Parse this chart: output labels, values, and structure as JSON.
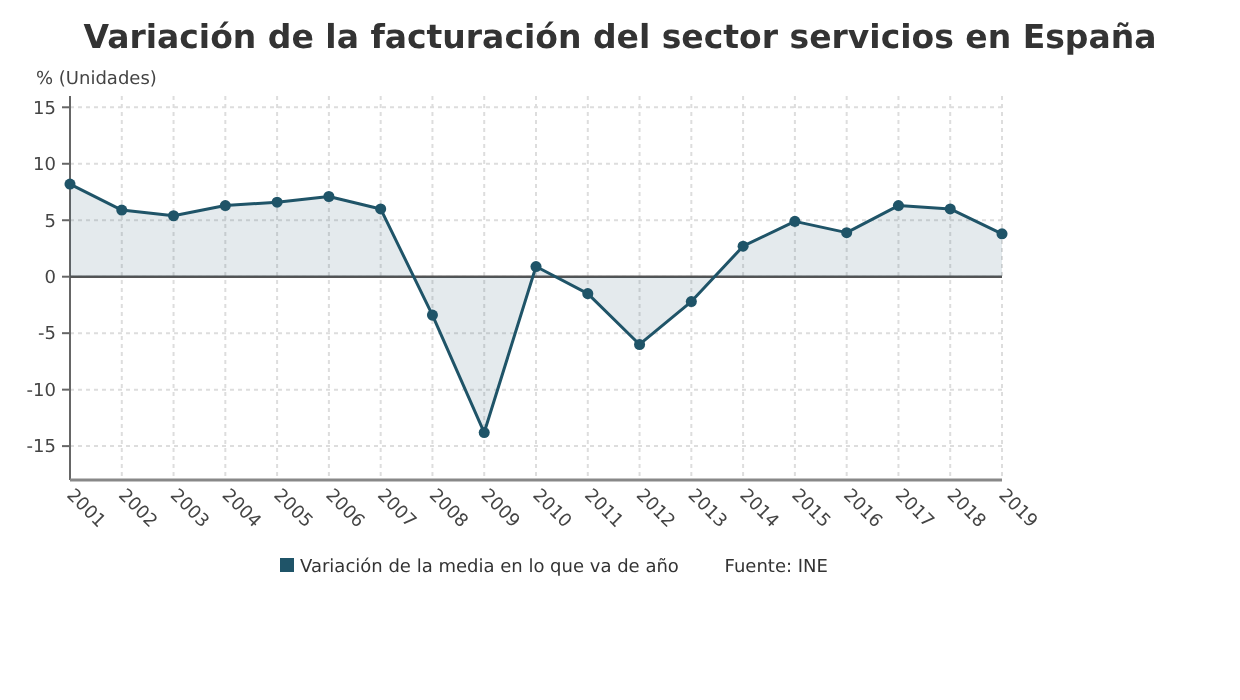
{
  "chart_data": {
    "type": "area",
    "title": "Variación de la facturación del sector servicios en España",
    "ylabel": "% (Unidades)",
    "categories": [
      "2001",
      "2002",
      "2003",
      "2004",
      "2005",
      "2006",
      "2007",
      "2008",
      "2009",
      "2010",
      "2011",
      "2012",
      "2013",
      "2014",
      "2015",
      "2016",
      "2017",
      "2018",
      "2019"
    ],
    "series": [
      {
        "name": "Variación de la media en lo que va de año",
        "color": "#1f5468",
        "values": [
          8.2,
          5.9,
          5.4,
          6.3,
          6.6,
          7.1,
          6.0,
          -3.4,
          -13.8,
          0.9,
          -1.5,
          -6.0,
          -2.2,
          2.7,
          4.9,
          3.9,
          6.3,
          6.0,
          3.8
        ]
      }
    ],
    "ylim": [
      -18,
      16
    ],
    "yticks": [
      -15,
      -10,
      -5,
      0,
      5,
      10,
      15
    ],
    "grid": true,
    "legend": "bottom",
    "marker": "circle",
    "ref_lines": [
      {
        "axis": "y",
        "value": 0,
        "color": "#555555"
      }
    ],
    "annotations": [
      "Fuente: INE"
    ]
  }
}
